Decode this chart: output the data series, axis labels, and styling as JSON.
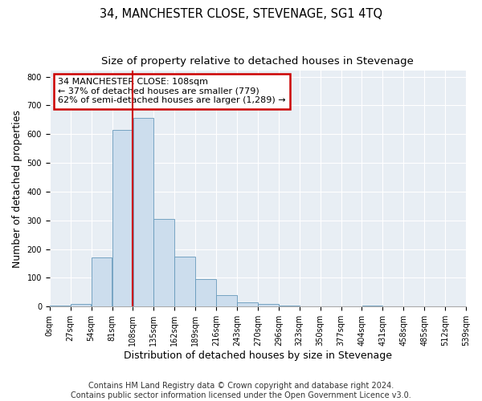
{
  "title": "34, MANCHESTER CLOSE, STEVENAGE, SG1 4TQ",
  "subtitle": "Size of property relative to detached houses in Stevenage",
  "xlabel": "Distribution of detached houses by size in Stevenage",
  "ylabel": "Number of detached properties",
  "bin_edges": [
    0,
    27,
    54,
    81,
    108,
    135,
    162,
    189,
    216,
    243,
    270,
    297,
    324,
    351,
    378,
    405,
    432,
    459,
    486,
    513,
    540
  ],
  "bar_heights": [
    5,
    10,
    170,
    615,
    655,
    305,
    175,
    97,
    40,
    15,
    10,
    3,
    0,
    0,
    0,
    3,
    0,
    0,
    0,
    0
  ],
  "bar_color": "#ccdded",
  "bar_edge_color": "#6699bb",
  "vline_x": 108,
  "vline_color": "#cc0000",
  "annotation_text": "34 MANCHESTER CLOSE: 108sqm\n← 37% of detached houses are smaller (779)\n62% of semi-detached houses are larger (1,289) →",
  "annotation_box_facecolor": "#ffffff",
  "annotation_box_edgecolor": "#cc0000",
  "ylim": [
    0,
    820
  ],
  "yticks": [
    0,
    100,
    200,
    300,
    400,
    500,
    600,
    700,
    800
  ],
  "xtick_labels": [
    "0sqm",
    "27sqm",
    "54sqm",
    "81sqm",
    "108sqm",
    "135sqm",
    "162sqm",
    "189sqm",
    "216sqm",
    "243sqm",
    "270sqm",
    "296sqm",
    "323sqm",
    "350sqm",
    "377sqm",
    "404sqm",
    "431sqm",
    "458sqm",
    "485sqm",
    "512sqm",
    "539sqm"
  ],
  "footer_text": "Contains HM Land Registry data © Crown copyright and database right 2024.\nContains public sector information licensed under the Open Government Licence v3.0.",
  "fig_facecolor": "#ffffff",
  "plot_facecolor": "#e8eef4",
  "grid_color": "#ffffff",
  "title_fontsize": 10.5,
  "subtitle_fontsize": 9.5,
  "ylabel_fontsize": 9,
  "xlabel_fontsize": 9,
  "footer_fontsize": 7,
  "annotation_fontsize": 8,
  "tick_fontsize": 7
}
